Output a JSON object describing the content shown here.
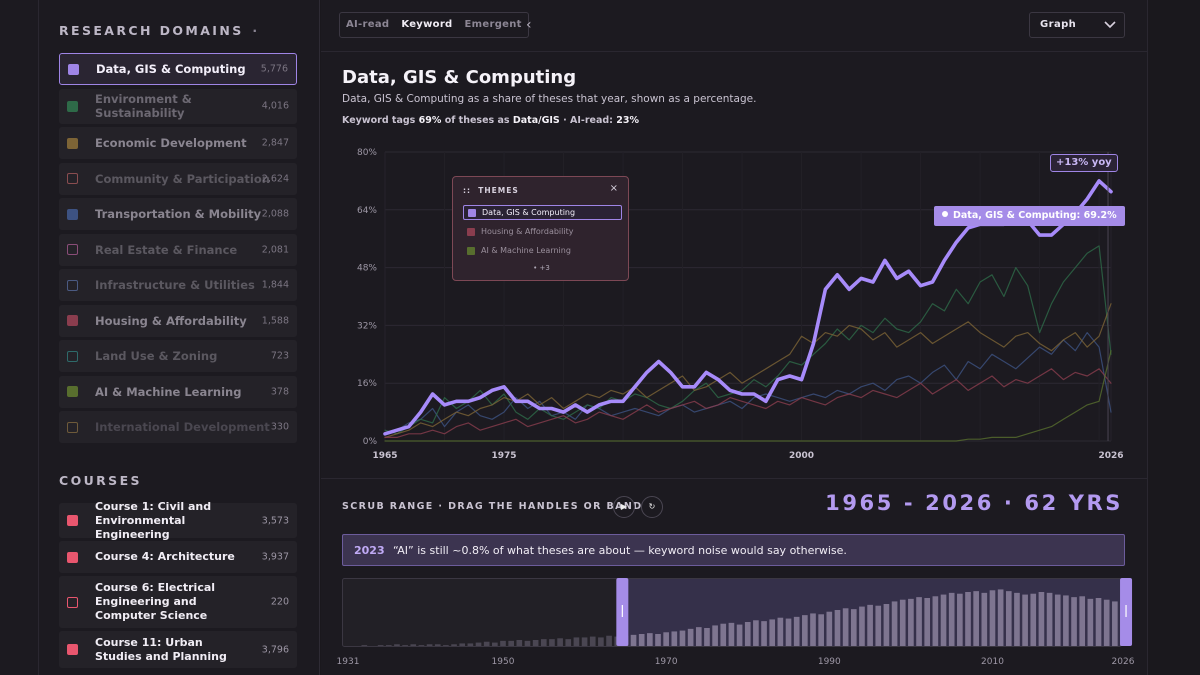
{
  "sidebar": {
    "domains_title": "RESEARCH DOMAINS",
    "domains_dot": "·",
    "domains": [
      {
        "label": "Data, GIS & Computing",
        "count": "5,776",
        "color": "#9f85e6",
        "text_color": "#f3effa",
        "selected": true,
        "hollow": false
      },
      {
        "label": "Environment & Sustainability",
        "count": "4,016",
        "color": "#2e6a48",
        "text_color": "#6c6872",
        "selected": false,
        "hollow": false
      },
      {
        "label": "Economic Development",
        "count": "2,847",
        "color": "#7d6436",
        "text_color": "#8a8590",
        "selected": false,
        "hollow": false
      },
      {
        "label": "Community & Participation",
        "count": "2,624",
        "color": "#8a4d50",
        "text_color": "#5b5860",
        "selected": false,
        "hollow": true
      },
      {
        "label": "Transportation & Mobility",
        "count": "2,088",
        "color": "#3d5282",
        "text_color": "#8a8590",
        "selected": false,
        "hollow": false
      },
      {
        "label": "Real Estate & Finance",
        "count": "2,081",
        "color": "#8a4d78",
        "text_color": "#5b5860",
        "selected": false,
        "hollow": true
      },
      {
        "label": "Infrastructure & Utilities",
        "count": "1,844",
        "color": "#4b5a82",
        "text_color": "#5b5860",
        "selected": false,
        "hollow": true
      },
      {
        "label": "Housing & Affordability",
        "count": "1,588",
        "color": "#8a3d4e",
        "text_color": "#8a8590",
        "selected": false,
        "hollow": false
      },
      {
        "label": "Land Use & Zoning",
        "count": "723",
        "color": "#2e6a6a",
        "text_color": "#5b5860",
        "selected": false,
        "hollow": true
      },
      {
        "label": "AI & Machine Learning",
        "count": "378",
        "color": "#586e2e",
        "text_color": "#8a8590",
        "selected": false,
        "hollow": false
      },
      {
        "label": "International Development",
        "count": "330",
        "color": "#6e5a3a",
        "text_color": "#4a4750",
        "selected": false,
        "hollow": true
      }
    ],
    "courses_title": "COURSES",
    "courses": [
      {
        "label": "Course 1: Civil and Environmental Engineering",
        "count": "3,573",
        "hollow": false
      },
      {
        "label": "Course 4: Architecture",
        "count": "3,937",
        "hollow": false
      },
      {
        "label": "Course 6: Electrical Engineering and Computer Science",
        "count": "220",
        "hollow": true
      },
      {
        "label": "Course 11: Urban Studies and Planning",
        "count": "3,796",
        "hollow": false
      }
    ],
    "course_color": "#e8566e"
  },
  "toolbar": {
    "modes": [
      "AI-read",
      "Keyword",
      "Emergent"
    ],
    "active_mode": "Keyword",
    "collapse_glyph": "‹",
    "view_select": "Graph"
  },
  "chart": {
    "title": "Data, GIS & Computing",
    "subtitle": "Data, GIS & Computing as a share of theses that year, shown as a percentage.",
    "note_prefix": "Keyword tags",
    "note_pct": "69%",
    "note_mid": "of theses as",
    "note_domain": "Data/GIS",
    "note_sep": "·",
    "note_ai_label": "AI-read:",
    "note_ai_pct": "23%",
    "badge": "+13% yoy",
    "tooltip": "Data, GIS & Computing: 69.2%",
    "themes_panel": {
      "handle": "::",
      "title": "THEMES",
      "close": "×",
      "items": [
        {
          "label": "Data, GIS & Computing",
          "color": "#9f85e6",
          "text_color": "#f3effa",
          "selected": true
        },
        {
          "label": "Housing & Affordability",
          "color": "#8a3d4e",
          "text_color": "#9a8f9c",
          "selected": false
        },
        {
          "label": "AI & Machine Learning",
          "color": "#586e2e",
          "text_color": "#9a8f9c",
          "selected": false
        }
      ],
      "more": "+3"
    }
  },
  "scrub": {
    "label": "SCRUB RANGE · DRAG THE HANDLES OR BAND",
    "play_glyph": "▶",
    "reset_glyph": "↻",
    "range_text": "1965 - 2026 · 62 YRS",
    "caption_year": "2023",
    "caption_text": "“AI” is still ~0.8% of what theses are about — keyword noise would say otherwise."
  },
  "chart_data": [
    {
      "type": "line",
      "title": "Data, GIS & Computing",
      "x": [
        1965,
        1966,
        1967,
        1968,
        1969,
        1970,
        1971,
        1972,
        1973,
        1974,
        1975,
        1976,
        1977,
        1978,
        1979,
        1980,
        1981,
        1982,
        1983,
        1984,
        1985,
        1986,
        1987,
        1988,
        1989,
        1990,
        1991,
        1992,
        1993,
        1994,
        1995,
        1996,
        1997,
        1998,
        1999,
        2000,
        2001,
        2002,
        2003,
        2004,
        2005,
        2006,
        2007,
        2008,
        2009,
        2010,
        2011,
        2012,
        2013,
        2014,
        2015,
        2016,
        2017,
        2018,
        2019,
        2020,
        2021,
        2022,
        2023,
        2024,
        2025,
        2026
      ],
      "x_ticks": [
        "1965",
        "1975",
        "2000",
        "2026"
      ],
      "y_ticks": [
        "0%",
        "16%",
        "32%",
        "48%",
        "64%",
        "80%"
      ],
      "ylim": [
        0,
        80
      ],
      "grid": true,
      "series": [
        {
          "name": "Data, GIS & Computing",
          "color": "#a78bfa",
          "emphasis": true,
          "values": [
            2,
            3,
            4,
            8,
            13,
            10,
            11,
            11,
            12,
            14,
            15,
            11,
            11,
            9,
            9,
            8,
            10,
            8,
            10,
            11,
            11,
            15,
            19,
            22,
            19,
            15,
            15,
            19,
            17,
            14,
            13,
            13,
            11,
            17,
            18,
            17,
            27,
            42,
            46,
            42,
            45,
            44,
            50,
            45,
            47,
            43,
            44,
            50,
            55,
            59,
            60,
            60,
            60,
            61,
            61,
            57,
            57,
            60,
            63,
            67,
            72,
            69
          ]
        },
        {
          "name": "",
          "color": "#3d5282",
          "emphasis": false,
          "values": [
            2,
            3,
            5,
            6,
            9,
            4,
            8,
            10,
            7,
            6,
            8,
            12,
            9,
            11,
            7,
            8,
            6,
            10,
            9,
            7,
            8,
            9,
            8,
            7,
            9,
            10,
            8,
            9,
            10,
            11,
            9,
            12,
            13,
            12,
            11,
            12,
            13,
            12,
            14,
            13,
            15,
            16,
            14,
            17,
            18,
            16,
            19,
            21,
            17,
            22,
            20,
            24,
            22,
            20,
            23,
            26,
            24,
            28,
            25,
            30,
            26,
            8
          ]
        },
        {
          "name": "",
          "color": "#2e6a48",
          "emphasis": false,
          "values": [
            3,
            2,
            4,
            6,
            5,
            12,
            9,
            11,
            14,
            10,
            13,
            8,
            6,
            9,
            7,
            6,
            8,
            10,
            9,
            12,
            11,
            13,
            12,
            10,
            9,
            11,
            14,
            16,
            12,
            13,
            14,
            17,
            15,
            18,
            22,
            21,
            24,
            27,
            31,
            28,
            32,
            30,
            34,
            31,
            30,
            33,
            38,
            36,
            42,
            38,
            44,
            46,
            40,
            48,
            43,
            30,
            38,
            44,
            48,
            52,
            54,
            24
          ]
        },
        {
          "name": "",
          "color": "#7d6436",
          "emphasis": false,
          "values": [
            1,
            2,
            3,
            5,
            4,
            6,
            8,
            7,
            9,
            10,
            12,
            11,
            13,
            10,
            12,
            9,
            11,
            13,
            12,
            14,
            13,
            15,
            12,
            14,
            16,
            18,
            14,
            15,
            17,
            19,
            16,
            18,
            20,
            22,
            24,
            29,
            27,
            30,
            29,
            32,
            31,
            28,
            30,
            26,
            28,
            30,
            27,
            29,
            31,
            33,
            30,
            28,
            26,
            29,
            30,
            27,
            25,
            28,
            30,
            26,
            29,
            38
          ]
        },
        {
          "name": "",
          "color": "#8a3d4e",
          "emphasis": false,
          "values": [
            1,
            1,
            2,
            2,
            3,
            2,
            4,
            5,
            3,
            4,
            5,
            6,
            4,
            5,
            6,
            7,
            5,
            6,
            8,
            7,
            6,
            8,
            10,
            8,
            9,
            10,
            11,
            9,
            10,
            12,
            11,
            10,
            9,
            11,
            10,
            12,
            11,
            10,
            12,
            13,
            12,
            14,
            13,
            12,
            14,
            16,
            13,
            15,
            17,
            14,
            16,
            18,
            15,
            17,
            16,
            18,
            20,
            17,
            19,
            18,
            20,
            16
          ]
        },
        {
          "name": "",
          "color": "#586e2e",
          "emphasis": false,
          "values": [
            0,
            0,
            0,
            0,
            0,
            0,
            0,
            0,
            0,
            0,
            0,
            0,
            0,
            0,
            0,
            0,
            0,
            0,
            0,
            0,
            0,
            0,
            0,
            0,
            0,
            0,
            0,
            0,
            0,
            0,
            0,
            0,
            0,
            0,
            0,
            0,
            0,
            0,
            0,
            0,
            0,
            0,
            0,
            0,
            0,
            0,
            0,
            0,
            0,
            0.5,
            0.5,
            1,
            1,
            1,
            2,
            3,
            4,
            6,
            8,
            10,
            11,
            25
          ]
        }
      ]
    },
    {
      "type": "bar",
      "title": "",
      "x_ticks": [
        "1931",
        "1950",
        "1970",
        "1990",
        "2010",
        "2026"
      ],
      "categories": [
        1931,
        1932,
        1933,
        1934,
        1935,
        1936,
        1937,
        1938,
        1939,
        1940,
        1941,
        1942,
        1943,
        1944,
        1945,
        1946,
        1947,
        1948,
        1949,
        1950,
        1951,
        1952,
        1953,
        1954,
        1955,
        1956,
        1957,
        1958,
        1959,
        1960,
        1961,
        1962,
        1963,
        1964,
        1965,
        1966,
        1967,
        1968,
        1969,
        1970,
        1971,
        1972,
        1973,
        1974,
        1975,
        1976,
        1977,
        1978,
        1979,
        1980,
        1981,
        1982,
        1983,
        1984,
        1985,
        1986,
        1987,
        1988,
        1989,
        1990,
        1991,
        1992,
        1993,
        1994,
        1995,
        1996,
        1997,
        1998,
        1999,
        2000,
        2001,
        2002,
        2003,
        2004,
        2005,
        2006,
        2007,
        2008,
        2009,
        2010,
        2011,
        2012,
        2013,
        2014,
        2015,
        2016,
        2017,
        2018,
        2019,
        2020,
        2021,
        2022,
        2023,
        2024,
        2025,
        2026
      ],
      "values": [
        0,
        0,
        1,
        0,
        1,
        1,
        2,
        1,
        2,
        1,
        2,
        2,
        1,
        2,
        3,
        3,
        4,
        5,
        4,
        6,
        6,
        7,
        6,
        7,
        8,
        8,
        9,
        8,
        10,
        10,
        11,
        10,
        12,
        11,
        12,
        13,
        14,
        15,
        14,
        16,
        17,
        18,
        20,
        22,
        21,
        24,
        26,
        27,
        25,
        28,
        30,
        29,
        31,
        33,
        32,
        34,
        36,
        38,
        37,
        40,
        42,
        44,
        43,
        46,
        48,
        47,
        49,
        52,
        54,
        55,
        57,
        56,
        58,
        60,
        62,
        61,
        63,
        64,
        62,
        65,
        66,
        64,
        62,
        60,
        61,
        63,
        62,
        60,
        59,
        57,
        58,
        55,
        56,
        54,
        52,
        50
      ],
      "selection": [
        1965,
        2026
      ]
    }
  ]
}
